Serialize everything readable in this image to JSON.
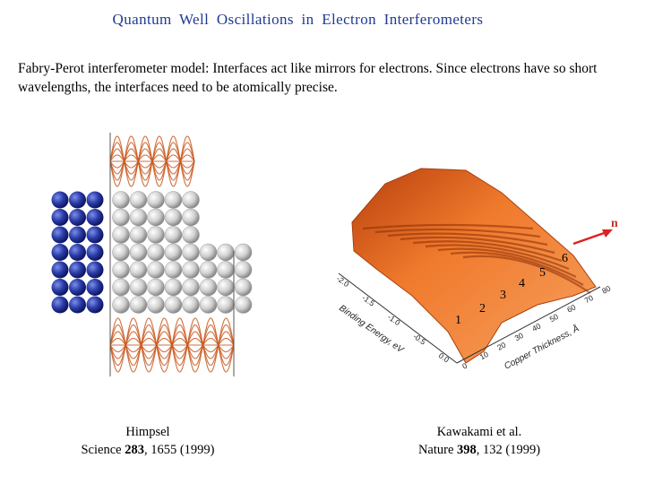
{
  "title": "Quantum  Well  Oscillations  in  Electron  Interferometers",
  "intro": "Fabry-Perot interferometer model:  Interfaces act like mirrors for electrons.  Since electrons have so short wavelengths, the interfaces need to be atomically precise.",
  "left_figure": {
    "caption_line1": "Himpsel",
    "caption_prefix": "Science ",
    "caption_volume": "283",
    "caption_suffix": ", 1655 (1999)"
  },
  "right_figure": {
    "caption_line1": "Kawakami et al.",
    "caption_prefix": "Nature ",
    "caption_volume": "398",
    "caption_suffix": ", 132 (1999)",
    "y_axis_label": "Binding Energy, eV",
    "x_axis_label": "Copper Thickness, Å",
    "y_ticks": [
      "-2.0",
      "-1.5",
      "-1.0",
      "-0.5",
      "0.0"
    ],
    "x_ticks": [
      "0",
      "10",
      "20",
      "30",
      "40",
      "50",
      "60",
      "70",
      "80"
    ],
    "mode_labels": [
      "1",
      "2",
      "3",
      "4",
      "5",
      "6"
    ],
    "arrow_label": "n"
  },
  "colors": {
    "title": "#1f3a93",
    "substrate_atoms": "#1a2a8c",
    "film_atoms": "#d0d0d0",
    "waves": "#c8581e",
    "surface": "#e0641e",
    "arrow": "#e02020"
  }
}
